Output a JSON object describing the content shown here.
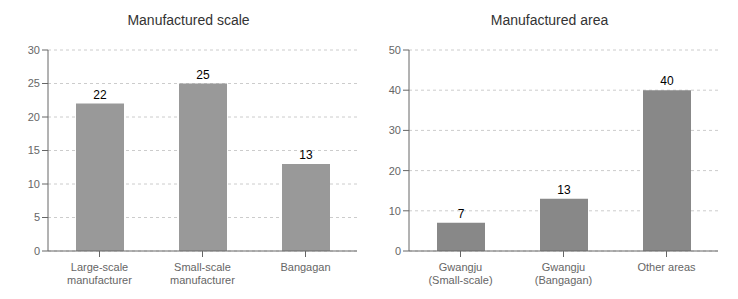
{
  "chart_data": [
    {
      "type": "bar",
      "title": "Manufactured scale",
      "categories": [
        "Large-scale\nmanufacturer",
        "Small-scale\nmanufacturer",
        "Bangagan"
      ],
      "values": [
        22,
        25,
        13
      ],
      "color": "#999999",
      "ylim": [
        0,
        30
      ],
      "yticks": [
        0,
        5,
        10,
        15,
        20,
        25,
        30
      ],
      "grid": true,
      "data_labels": true
    },
    {
      "type": "bar",
      "title": "Manufactured area",
      "categories": [
        "Gwangju\n(Small-scale)",
        "Gwangju\n(Bangagan)",
        "Other areas"
      ],
      "values": [
        7,
        13,
        40
      ],
      "color": "#888888",
      "ylim": [
        0,
        50
      ],
      "yticks": [
        0,
        10,
        20,
        30,
        40,
        50
      ],
      "grid": true,
      "data_labels": true
    }
  ]
}
